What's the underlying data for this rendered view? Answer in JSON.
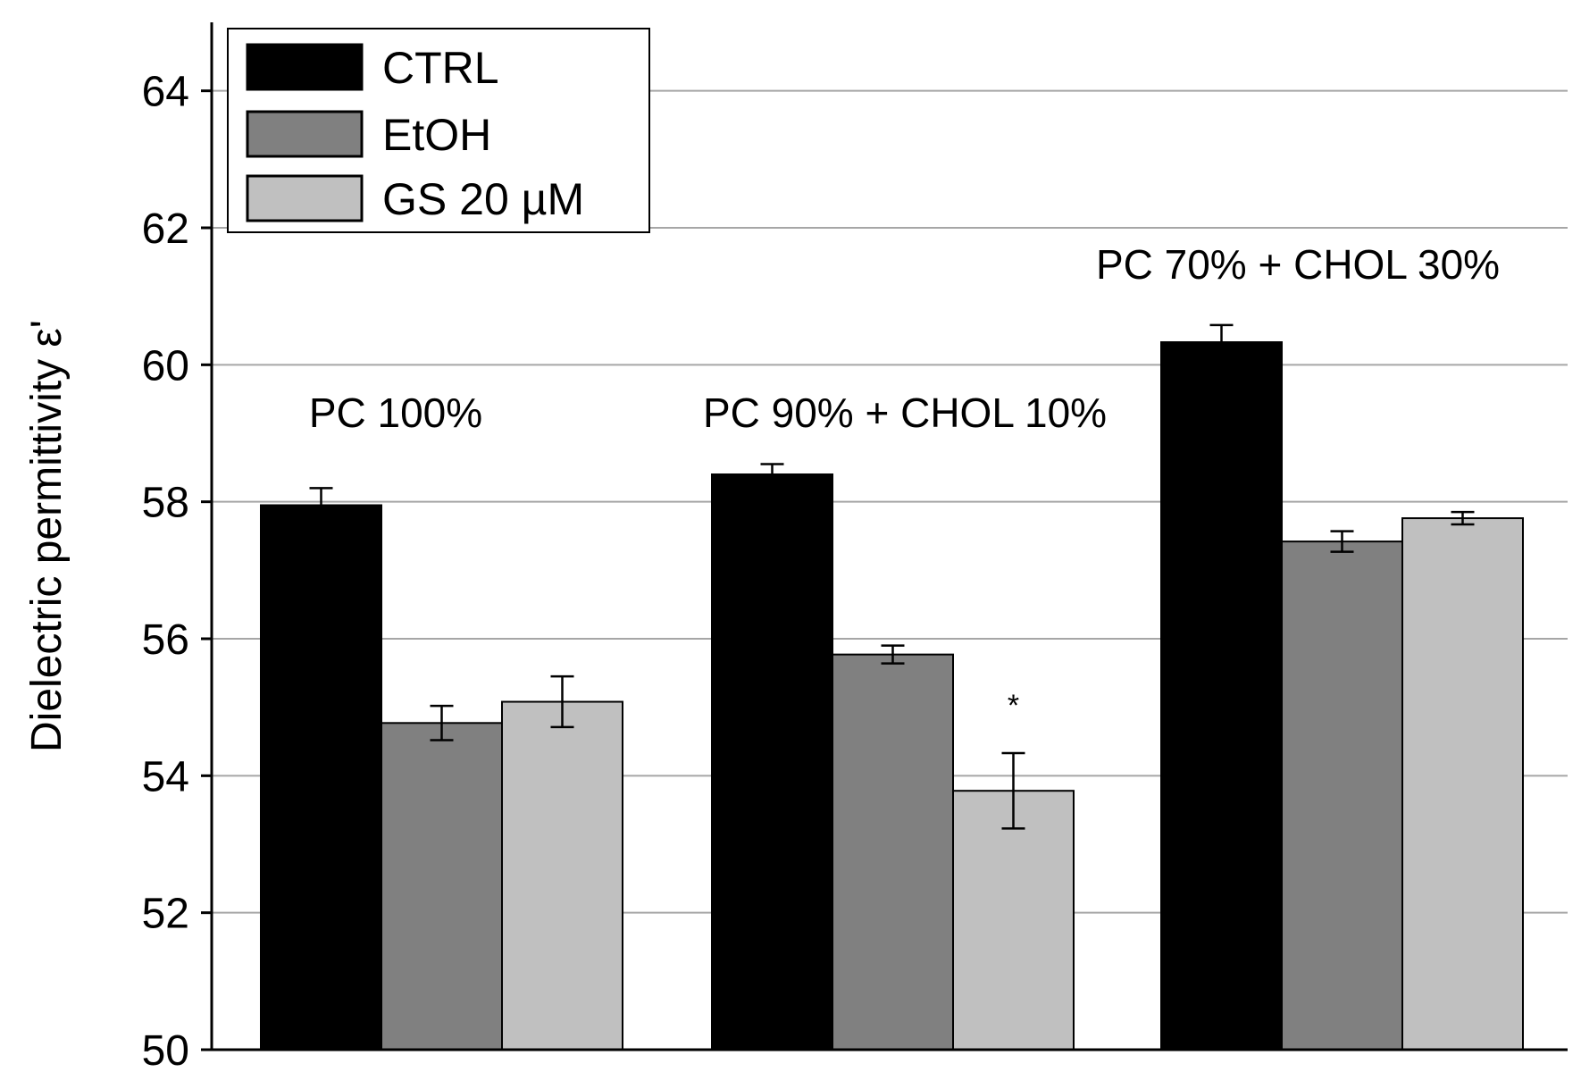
{
  "chart_data": {
    "type": "bar",
    "title": "",
    "xlabel": "",
    "ylabel": "Dielectric permittivity ε'",
    "ylim": [
      50,
      65
    ],
    "yticks": [
      50,
      52,
      54,
      56,
      58,
      60,
      62,
      64
    ],
    "grid": true,
    "legend_position": "top-left",
    "categories": [
      "PC 100%",
      "PC 90% + CHOL 10%",
      "PC 70% + CHOL 30%"
    ],
    "series": [
      {
        "name": "CTRL",
        "color": "#000000",
        "values": [
          57.95,
          58.4,
          60.33
        ],
        "errors": [
          0.25,
          0.15,
          0.25
        ]
      },
      {
        "name": "EtOH",
        "color": "#808080",
        "values": [
          54.77,
          55.77,
          57.42
        ],
        "errors": [
          0.25,
          0.13,
          0.15
        ]
      },
      {
        "name": "GS 20 µM",
        "color": "#c0c0c0",
        "values": [
          55.08,
          53.78,
          57.76
        ],
        "errors": [
          0.37,
          0.55,
          0.09
        ]
      }
    ],
    "annotations": [
      {
        "text": "*",
        "category": "PC 90% + CHOL 10%",
        "series": "GS 20 µM"
      }
    ]
  }
}
